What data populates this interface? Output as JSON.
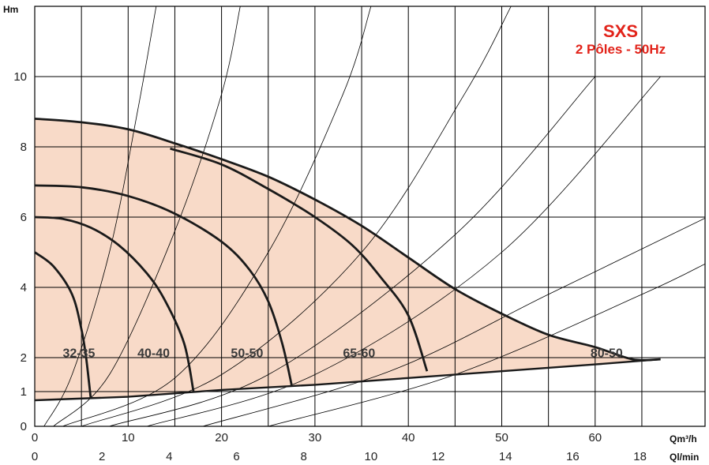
{
  "chart_data": {
    "type": "line",
    "title": "SXS",
    "subtitle": "2 Pôles - 50Hz",
    "ylabel": "Hm",
    "xlabel": "Qm³/h",
    "xlabel_secondary": "Ql/min",
    "xlim": [
      0,
      72
    ],
    "ylim": [
      0,
      12
    ],
    "x_ticks": [
      0,
      10,
      20,
      30,
      40,
      50,
      60
    ],
    "x_ticks_secondary": [
      0,
      2,
      4,
      6,
      8,
      10,
      12,
      14,
      16,
      18
    ],
    "y_ticks": [
      0,
      1,
      2,
      4,
      6,
      8,
      10
    ],
    "grid": true,
    "colors": {
      "fill": "#f8dac8",
      "curve": "#1a1a1a",
      "title": "#e2231a",
      "grid": "#000000"
    },
    "envelope": {
      "top": [
        [
          0,
          8.8
        ],
        [
          5,
          8.7
        ],
        [
          10,
          8.5
        ],
        [
          15,
          8.1
        ],
        [
          20,
          7.65
        ],
        [
          25,
          7.15
        ],
        [
          30,
          6.5
        ],
        [
          35,
          5.75
        ],
        [
          40,
          4.85
        ],
        [
          45,
          3.95
        ],
        [
          50,
          3.25
        ],
        [
          55,
          2.65
        ],
        [
          60,
          2.3
        ],
        [
          64,
          1.95
        ],
        [
          67,
          1.95
        ]
      ],
      "bottom": [
        [
          0,
          0.75
        ],
        [
          10,
          0.85
        ],
        [
          20,
          1.05
        ],
        [
          30,
          1.2
        ],
        [
          40,
          1.4
        ],
        [
          50,
          1.6
        ],
        [
          60,
          1.8
        ],
        [
          67,
          1.95
        ]
      ]
    },
    "series": [
      {
        "name": "32-35",
        "label_at": [
          3,
          2.3
        ],
        "values": [
          [
            0,
            5.0
          ],
          [
            2,
            4.6
          ],
          [
            4,
            3.8
          ],
          [
            5,
            2.8
          ],
          [
            5.5,
            2.0
          ],
          [
            6,
            0.8
          ]
        ]
      },
      {
        "name": "40-40",
        "label_at": [
          11,
          2.3
        ],
        "values": [
          [
            0,
            6.0
          ],
          [
            3,
            5.95
          ],
          [
            6,
            5.7
          ],
          [
            9,
            5.2
          ],
          [
            12,
            4.4
          ],
          [
            14,
            3.6
          ],
          [
            16,
            2.4
          ],
          [
            17,
            1.0
          ]
        ]
      },
      {
        "name": "50-50",
        "label_at": [
          21,
          2.3
        ],
        "values": [
          [
            0,
            6.9
          ],
          [
            5,
            6.85
          ],
          [
            10,
            6.6
          ],
          [
            15,
            6.1
          ],
          [
            20,
            5.3
          ],
          [
            23,
            4.5
          ],
          [
            25,
            3.6
          ],
          [
            26.5,
            2.4
          ],
          [
            27.5,
            1.2
          ]
        ]
      },
      {
        "name": "65-60",
        "label_at": [
          33,
          2.3
        ],
        "values": [
          [
            14.5,
            7.95
          ],
          [
            20,
            7.5
          ],
          [
            25,
            6.8
          ],
          [
            30,
            6.0
          ],
          [
            34,
            5.2
          ],
          [
            37,
            4.3
          ],
          [
            40,
            3.2
          ],
          [
            42,
            1.6
          ]
        ]
      },
      {
        "name": "80-50",
        "label_at": [
          59.5,
          2.3
        ],
        "values": [
          [
            0,
            8.8
          ],
          [
            67,
            1.95
          ]
        ]
      }
    ],
    "system_curves": [
      [
        [
          1,
          0
        ],
        [
          4,
          1.5
        ],
        [
          8,
          5.0
        ],
        [
          11,
          9.0
        ],
        [
          13,
          12
        ]
      ],
      [
        [
          2,
          0
        ],
        [
          8,
          1.5
        ],
        [
          15,
          5.6
        ],
        [
          20,
          9.5
        ],
        [
          22,
          12
        ]
      ],
      [
        [
          3,
          0
        ],
        [
          15,
          1.4
        ],
        [
          25,
          5.0
        ],
        [
          33,
          9.5
        ],
        [
          36,
          12
        ]
      ],
      [
        [
          5,
          0
        ],
        [
          20,
          1.5
        ],
        [
          35,
          5.0
        ],
        [
          46,
          9.5
        ],
        [
          51,
          12
        ]
      ],
      [
        [
          8,
          0
        ],
        [
          25,
          1.5
        ],
        [
          45,
          5.5
        ],
        [
          60,
          10.0
        ]
      ],
      [
        [
          12,
          0
        ],
        [
          30,
          1.5
        ],
        [
          50,
          5.0
        ],
        [
          67,
          10.0
        ]
      ],
      [
        [
          18,
          0
        ],
        [
          38,
          1.6
        ],
        [
          55,
          3.8
        ],
        [
          72,
          6.0
        ]
      ],
      [
        [
          25,
          0
        ],
        [
          45,
          1.5
        ],
        [
          65,
          3.8
        ],
        [
          72,
          4.7
        ]
      ]
    ]
  }
}
